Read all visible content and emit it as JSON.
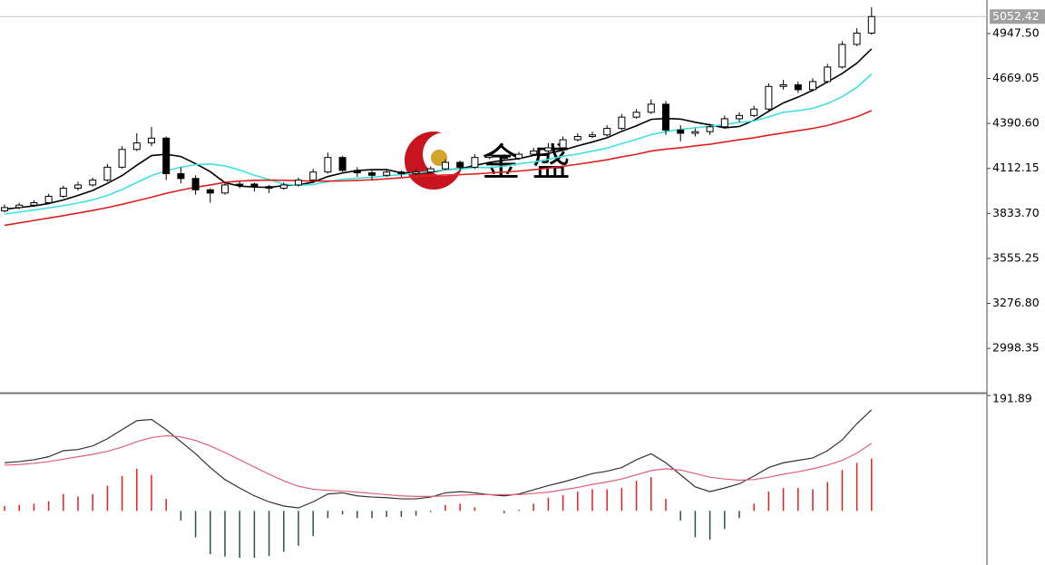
{
  "chart_data": [
    {
      "type": "candlestick",
      "open": [
        3850,
        3870,
        3885,
        3900,
        3940,
        3990,
        4010,
        4040,
        4120,
        4230,
        4270,
        4300,
        4080,
        4050,
        3980,
        3960,
        4010,
        4015,
        4000,
        3990,
        4010,
        4040,
        4090,
        4180,
        4100,
        4085,
        4070,
        4090,
        4080,
        4090,
        4110,
        4150,
        4120,
        4180,
        4190,
        4175,
        4200,
        4220,
        4240,
        4290,
        4310,
        4320,
        4360,
        4430,
        4460,
        4510,
        4350,
        4330,
        4340,
        4370,
        4420,
        4440,
        4480,
        4620,
        4630,
        4600,
        4650,
        4740,
        4880,
        4950
      ],
      "high": [
        3890,
        3900,
        3915,
        3955,
        4005,
        4030,
        4055,
        4140,
        4250,
        4330,
        4370,
        4310,
        4120,
        4070,
        3990,
        4030,
        4030,
        4025,
        4010,
        4025,
        4055,
        4110,
        4210,
        4190,
        4120,
        4100,
        4110,
        4100,
        4110,
        4125,
        4170,
        4160,
        4200,
        4210,
        4200,
        4215,
        4240,
        4270,
        4310,
        4330,
        4340,
        4380,
        4450,
        4480,
        4540,
        4530,
        4380,
        4360,
        4390,
        4440,
        4460,
        4500,
        4640,
        4660,
        4650,
        4670,
        4760,
        4900,
        4980,
        5110
      ],
      "low": [
        3840,
        3860,
        3875,
        3890,
        3930,
        3975,
        4000,
        4030,
        4110,
        4220,
        4250,
        4040,
        4020,
        3950,
        3900,
        3950,
        3990,
        3970,
        3960,
        3980,
        4000,
        4030,
        4080,
        4090,
        4060,
        4040,
        4060,
        4060,
        4070,
        4080,
        4100,
        4100,
        4110,
        4170,
        4160,
        4165,
        4190,
        4210,
        4230,
        4280,
        4300,
        4310,
        4350,
        4420,
        4450,
        4320,
        4280,
        4310,
        4320,
        4360,
        4400,
        4430,
        4470,
        4600,
        4580,
        4590,
        4640,
        4730,
        4870,
        4940
      ],
      "close": [
        3870,
        3885,
        3900,
        3940,
        3990,
        4010,
        4040,
        4120,
        4230,
        4270,
        4300,
        4080,
        4050,
        3980,
        3960,
        4010,
        4015,
        4000,
        3990,
        4010,
        4040,
        4090,
        4180,
        4100,
        4085,
        4070,
        4090,
        4080,
        4090,
        4110,
        4150,
        4120,
        4180,
        4190,
        4175,
        4200,
        4220,
        4240,
        4290,
        4310,
        4320,
        4360,
        4430,
        4460,
        4510,
        4350,
        4330,
        4340,
        4370,
        4420,
        4440,
        4480,
        4620,
        4630,
        4600,
        4650,
        4740,
        4880,
        4950,
        5052.42
      ],
      "lines": [
        {
          "color": "#000000",
          "values": [
            3860,
            3870,
            3880,
            3895,
            3917,
            3945,
            3976,
            4020,
            4068,
            4132,
            4192,
            4200,
            4186,
            4142,
            4092,
            4024,
            4003,
            3997,
            3995,
            4006,
            4011,
            4027,
            4062,
            4084,
            4099,
            4105,
            4105,
            4085,
            4083,
            4088,
            4104,
            4110,
            4130,
            4150,
            4163,
            4173,
            4193,
            4205,
            4225,
            4252,
            4276,
            4302,
            4342,
            4376,
            4416,
            4422,
            4418,
            4398,
            4382,
            4364,
            4372,
            4410,
            4466,
            4518,
            4554,
            4596,
            4648,
            4700,
            4764,
            4852
          ]
        },
        {
          "color": "#40e0e0",
          "values": [
            3830,
            3842,
            3855,
            3868,
            3882,
            3898,
            3918,
            3945,
            3982,
            4025,
            4068,
            4098,
            4120,
            4136,
            4140,
            4128,
            4102,
            4070,
            4044,
            4015,
            4008,
            4012,
            4030,
            4045,
            4052,
            4058,
            4066,
            4074,
            4084,
            4094,
            4104,
            4108,
            4118,
            4118,
            4126,
            4141,
            4152,
            4168,
            4188,
            4201,
            4220,
            4238,
            4266,
            4292,
            4322,
            4340,
            4354,
            4364,
            4372,
            4385,
            4397,
            4406,
            4432,
            4460,
            4470,
            4484,
            4514,
            4556,
            4614,
            4696
          ]
        },
        {
          "color": "#e02020",
          "values": [
            3760,
            3775,
            3790,
            3805,
            3820,
            3836,
            3852,
            3870,
            3890,
            3912,
            3934,
            3958,
            3978,
            3996,
            4010,
            4026,
            4034,
            4038,
            4040,
            4039,
            4036,
            4034,
            4034,
            4035,
            4038,
            4042,
            4048,
            4055,
            4062,
            4068,
            4072,
            4074,
            4078,
            4084,
            4090,
            4096,
            4104,
            4114,
            4126,
            4138,
            4152,
            4166,
            4184,
            4200,
            4220,
            4232,
            4240,
            4252,
            4262,
            4276,
            4290,
            4302,
            4318,
            4332,
            4346,
            4360,
            4378,
            4404,
            4432,
            4470
          ]
        }
      ],
      "ylim": [
        2724,
        5155
      ],
      "yticks": [
        {
          "value": 4947.5,
          "label": "4947.50"
        },
        4669.05,
        {
          "value": 4390.6,
          "label": "4390.60"
        },
        4112.15,
        {
          "value": 3833.7,
          "label": "3833.70"
        },
        3555.25,
        {
          "value": 3276.8,
          "label": "3276.80"
        },
        2998.35
      ],
      "last_price": 5052.42,
      "watermark": "金 盛"
    },
    {
      "type": "macd",
      "series": [
        {
          "color": "#333333",
          "values": [
            80,
            82,
            85,
            90,
            100,
            102,
            108,
            120,
            135,
            150,
            152,
            135,
            115,
            95,
            72,
            52,
            38,
            25,
            15,
            8,
            5,
            15,
            28,
            30,
            25,
            23,
            22,
            20,
            20,
            23,
            30,
            32,
            30,
            27,
            25,
            28,
            35,
            42,
            48,
            55,
            62,
            66,
            72,
            85,
            95,
            80,
            60,
            40,
            32,
            38,
            45,
            58,
            72,
            80,
            84,
            88,
            100,
            118,
            145,
            168
          ]
        },
        {
          "color": "#e0607a",
          "values": [
            76,
            77,
            79,
            82,
            86,
            90,
            94,
            99,
            106,
            115,
            122,
            125,
            123,
            117,
            108,
            97,
            85,
            73,
            61,
            50,
            41,
            36,
            34,
            33,
            31,
            29,
            27,
            25,
            24,
            24,
            25,
            26,
            27,
            27,
            27,
            27,
            29,
            31,
            35,
            39,
            44,
            48,
            53,
            60,
            67,
            70,
            68,
            62,
            56,
            53,
            51,
            52,
            56,
            61,
            65,
            70,
            76,
            84,
            96,
            112
          ]
        }
      ],
      "histogram": {
        "up_color": "#e02020",
        "down_color": "#2f4f4f",
        "values": [
          8,
          10,
          12,
          16,
          28,
          24,
          28,
          42,
          58,
          70,
          60,
          20,
          -16,
          -44,
          -72,
          -76,
          -78,
          -78,
          -75,
          -68,
          -58,
          -42,
          -12,
          -6,
          -12,
          -12,
          -10,
          -10,
          -8,
          -2,
          10,
          12,
          6,
          0,
          -4,
          2,
          12,
          22,
          26,
          32,
          36,
          36,
          38,
          50,
          56,
          20,
          -16,
          -44,
          -48,
          -30,
          -12,
          12,
          32,
          38,
          38,
          36,
          48,
          68,
          80,
          87
        ]
      },
      "ylim": [
        -90,
        195
      ],
      "yticks": [
        191.89
      ]
    }
  ]
}
